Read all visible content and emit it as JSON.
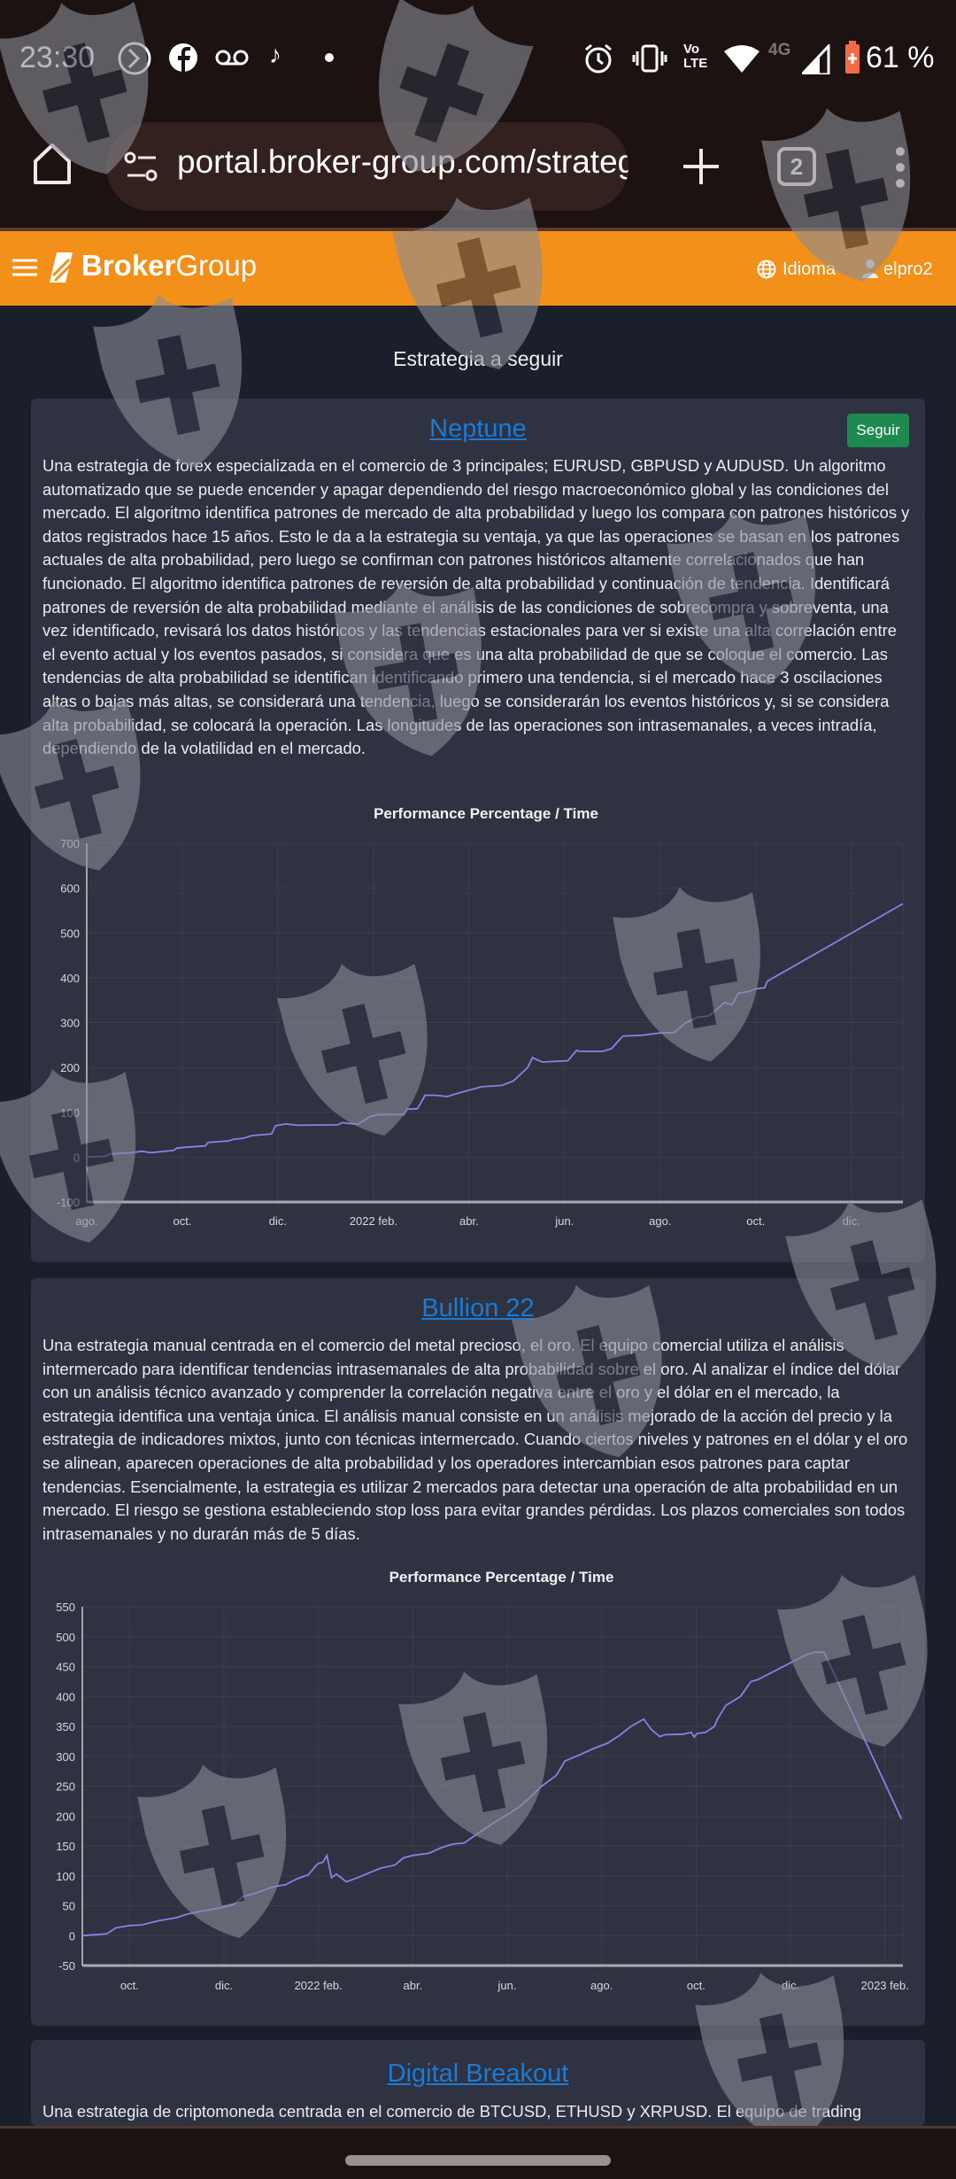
{
  "status_bar": {
    "time": "23:30",
    "network": "4G",
    "volte": "Vo LTE",
    "battery": "61 %"
  },
  "browser": {
    "url": "portal.broker-group.com/strategies",
    "tab_count": "2"
  },
  "header": {
    "brand_bold": "Broker",
    "brand_light": "Group",
    "language_label": "Idioma",
    "username": "elpro2"
  },
  "page": {
    "title": "Estrategia a seguir"
  },
  "strategies": [
    {
      "name": "Neptune",
      "follow_label": "Seguir",
      "description": "Una estrategia de forex especializada en el comercio de 3 principales; EURUSD, GBPUSD y AUDUSD. Un algoritmo automatizado que se puede encender y apagar dependiendo del riesgo macroeconómico global y las condiciones del mercado. El algoritmo identifica patrones de mercado de alta probabilidad y luego los compara con patrones históricos y datos registrados hace 15 años. Esto le da a la estrategia su ventaja, ya que las operaciones se basan en los patrones actuales de alta probabilidad, pero luego se confirman con patrones históricos altamente correlacionados que han funcionado. El algoritmo identifica patrones de reversión de alta probabilidad y continuación de tendencia. Identificará patrones de reversión de alta probabilidad mediante el análisis de las condiciones de sobrecompra y sobreventa, una vez identificado, revisará los datos históricos y las tendencias estacionales para ver si existe una alta correlación entre el evento actual y los eventos pasados, si considera que es una alta probabilidad de que se coloque el comercio. Las tendencias de alta probabilidad se identifican identificando primero una tendencia, si el mercado hace 3 oscilaciones altas o bajas más altas, se considerará una tendencia, luego se considerarán los eventos históricos y, si se considera alta probabilidad, se colocará la operación. Las longitudes de las operaciones son intrasemanales, a veces intradía, dependiendo de la volatilidad en el mercado."
    },
    {
      "name": "Bullion 22",
      "description": "Una estrategia manual centrada en el comercio del metal precioso, el oro. El equipo comercial utiliza el análisis intermercado para identificar tendencias intrasemanales de alta probabilidad sobre el oro. Al analizar el índice del dólar con un análisis técnico avanzado y comprender la correlación negativa entre el oro y el dólar en el mercado, la estrategia identifica una ventaja única. El análisis manual consiste en un análisis mejorado de la acción del precio y la estrategia de indicadores mixtos, junto con técnicas intermercado. Cuando ciertos niveles y patrones en el dólar y el oro se alinean, aparecen operaciones de alta probabilidad y los operadores intercambian esos patrones para captar tendencias. Esencialmente, la estrategia es utilizar 2 mercados para detectar una operación de alta probabilidad en un mercado. El riesgo se gestiona estableciendo stop loss para evitar grandes pérdidas. Los plazos comerciales son todos intrasemanales y no durarán más de 5 días."
    },
    {
      "name": "Digital Breakout",
      "description": "Una estrategia de criptomoneda centrada en el comercio de BTCUSD, ETHUSD y XRPUSD. El equipo de trading"
    }
  ],
  "colors": {
    "accent": "#f39019",
    "link": "#1a7ad4",
    "follow": "#1e8a4f",
    "line": "#8a80e6",
    "card": "#2f3241",
    "page": "#1b1e2b"
  },
  "chart_data": [
    {
      "type": "line",
      "title": "Performance Percentage / Time",
      "xlabel": "",
      "ylabel": "",
      "x_unit": "months since 2021-08-01",
      "xlim": [
        0,
        17.08
      ],
      "ylim": [
        -100,
        700
      ],
      "yticks": [
        -100,
        0,
        100,
        200,
        300,
        400,
        500,
        600,
        700
      ],
      "xticks": [
        {
          "x": 0,
          "label": "ago."
        },
        {
          "x": 2,
          "label": "oct."
        },
        {
          "x": 4,
          "label": "dic."
        },
        {
          "x": 6,
          "label": "2022 feb."
        },
        {
          "x": 8,
          "label": "abr."
        },
        {
          "x": 10,
          "label": "jun."
        },
        {
          "x": 12,
          "label": "ago."
        },
        {
          "x": 14,
          "label": "oct."
        },
        {
          "x": 16,
          "label": "dic."
        }
      ],
      "grid": true,
      "series": [
        {
          "name": "Neptune",
          "x": [
            0,
            0.37,
            0.49,
            0.92,
            1.16,
            1.34,
            1.82,
            1.88,
            2.06,
            2.48,
            2.54,
            2.96,
            3.08,
            3.27,
            3.45,
            3.87,
            3.95,
            4.17,
            4.41,
            5.25,
            5.35,
            5.67,
            5.92,
            6.1,
            6.64,
            6.7,
            6.92,
            7.08,
            7.3,
            7.54,
            7.78,
            8.27,
            8.69,
            8.93,
            9.23,
            9.33,
            9.53,
            10.07,
            10.25,
            10.31,
            10.8,
            10.98,
            11.22,
            11.64,
            12.0,
            12.3,
            12.54,
            12.78,
            13.02,
            13.14,
            13.35,
            13.51,
            13.63,
            13.87,
            13.99,
            14.19,
            14.24,
            17.08
          ],
          "y": [
            0,
            2,
            7,
            10,
            13,
            10,
            15,
            20,
            22,
            25,
            33,
            36,
            40,
            42,
            48,
            52,
            70,
            74,
            71,
            72,
            77,
            73,
            90,
            95,
            95,
            107,
            108,
            138,
            138,
            135,
            143,
            157,
            160,
            170,
            200,
            222,
            212,
            215,
            238,
            236,
            236,
            242,
            270,
            272,
            277,
            278,
            300,
            312,
            315,
            325,
            345,
            340,
            365,
            370,
            375,
            378,
            392,
            565
          ]
        }
      ]
    },
    {
      "type": "line",
      "title": "Performance Percentage / Time",
      "xlabel": "",
      "ylabel": "",
      "x_unit": "months since 2021-09-01",
      "xlim": [
        0,
        17.38
      ],
      "ylim": [
        -50,
        550
      ],
      "yticks": [
        -50,
        0,
        50,
        100,
        150,
        200,
        250,
        300,
        350,
        400,
        450,
        500,
        550
      ],
      "xticks": [
        {
          "x": 1,
          "label": "oct."
        },
        {
          "x": 3,
          "label": "dic."
        },
        {
          "x": 5,
          "label": "2022 feb."
        },
        {
          "x": 7,
          "label": "abr."
        },
        {
          "x": 9,
          "label": "jun."
        },
        {
          "x": 11,
          "label": "ago."
        },
        {
          "x": 13,
          "label": "oct."
        },
        {
          "x": 15,
          "label": "dic."
        },
        {
          "x": 17,
          "label": "2023 feb."
        }
      ],
      "grid": true,
      "series": [
        {
          "name": "Bullion 22",
          "x": [
            0,
            0.52,
            0.71,
            1.01,
            1.26,
            1.62,
            1.99,
            2.23,
            2.6,
            2.96,
            3.21,
            3.39,
            3.63,
            4.06,
            4.3,
            4.55,
            4.79,
            4.98,
            5.1,
            5.18,
            5.28,
            5.38,
            5.59,
            5.83,
            6.07,
            6.32,
            6.62,
            6.8,
            6.99,
            7.35,
            7.6,
            7.84,
            8.09,
            8.27,
            8.51,
            8.7,
            9.06,
            9.3,
            9.49,
            9.73,
            10.04,
            10.22,
            10.52,
            10.83,
            11.13,
            11.38,
            11.62,
            11.89,
            12.05,
            12.23,
            12.35,
            12.72,
            12.9,
            12.96,
            13.02,
            13.2,
            13.39,
            13.45,
            13.63,
            13.94,
            14.16,
            14.3,
            15.34,
            15.52,
            15.71,
            17.35
          ],
          "y": [
            0,
            3,
            13,
            17,
            18,
            25,
            30,
            36,
            42,
            47,
            52,
            65,
            70,
            82,
            85,
            95,
            102,
            120,
            123,
            134,
            97,
            103,
            90,
            97,
            105,
            113,
            118,
            130,
            134,
            138,
            147,
            153,
            155,
            165,
            178,
            188,
            205,
            218,
            232,
            250,
            268,
            292,
            302,
            313,
            322,
            335,
            350,
            362,
            345,
            333,
            336,
            337,
            340,
            332,
            338,
            340,
            350,
            362,
            385,
            400,
            425,
            428,
            470,
            474,
            474,
            195
          ]
        }
      ]
    }
  ]
}
